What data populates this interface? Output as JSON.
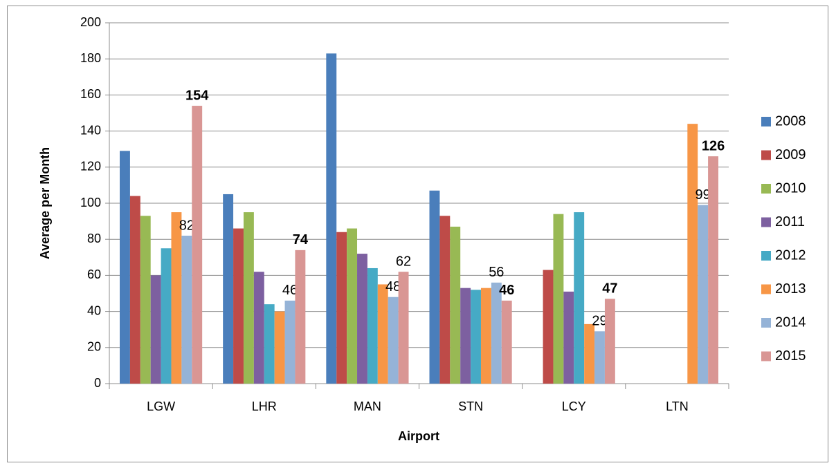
{
  "chart_data": {
    "type": "bar",
    "x_label": "Airport",
    "y_label": "Average per Month",
    "categories": [
      "LGW",
      "LHR",
      "MAN",
      "STN",
      "LCY",
      "LTN"
    ],
    "series": [
      {
        "name": "2008",
        "color": "#4a7ebb",
        "values": [
          129,
          105,
          183,
          107,
          null,
          null
        ]
      },
      {
        "name": "2009",
        "color": "#be4b48",
        "values": [
          104,
          86,
          84,
          93,
          63,
          null
        ]
      },
      {
        "name": "2010",
        "color": "#98b954",
        "values": [
          93,
          95,
          86,
          87,
          94,
          null
        ]
      },
      {
        "name": "2011",
        "color": "#7d60a0",
        "values": [
          60,
          62,
          72,
          53,
          51,
          null
        ]
      },
      {
        "name": "2012",
        "color": "#46aac5",
        "values": [
          75,
          44,
          64,
          52,
          95,
          null
        ]
      },
      {
        "name": "2013",
        "color": "#f79646",
        "values": [
          95,
          40,
          55,
          53,
          33,
          144
        ]
      },
      {
        "name": "2014",
        "color": "#95b3d7",
        "values": [
          82,
          46,
          48,
          56,
          29,
          99
        ],
        "show_labels": true
      },
      {
        "name": "2015",
        "color": "#d99694",
        "values": [
          154,
          74,
          62,
          46,
          47,
          126
        ],
        "show_labels": true,
        "bold_labels": [
          true,
          true,
          false,
          true,
          true,
          true
        ]
      }
    ],
    "ylim": [
      0,
      200
    ],
    "yticks": [
      0,
      20,
      40,
      60,
      80,
      100,
      120,
      140,
      160,
      180,
      200
    ],
    "grid": true,
    "legend": "right"
  }
}
